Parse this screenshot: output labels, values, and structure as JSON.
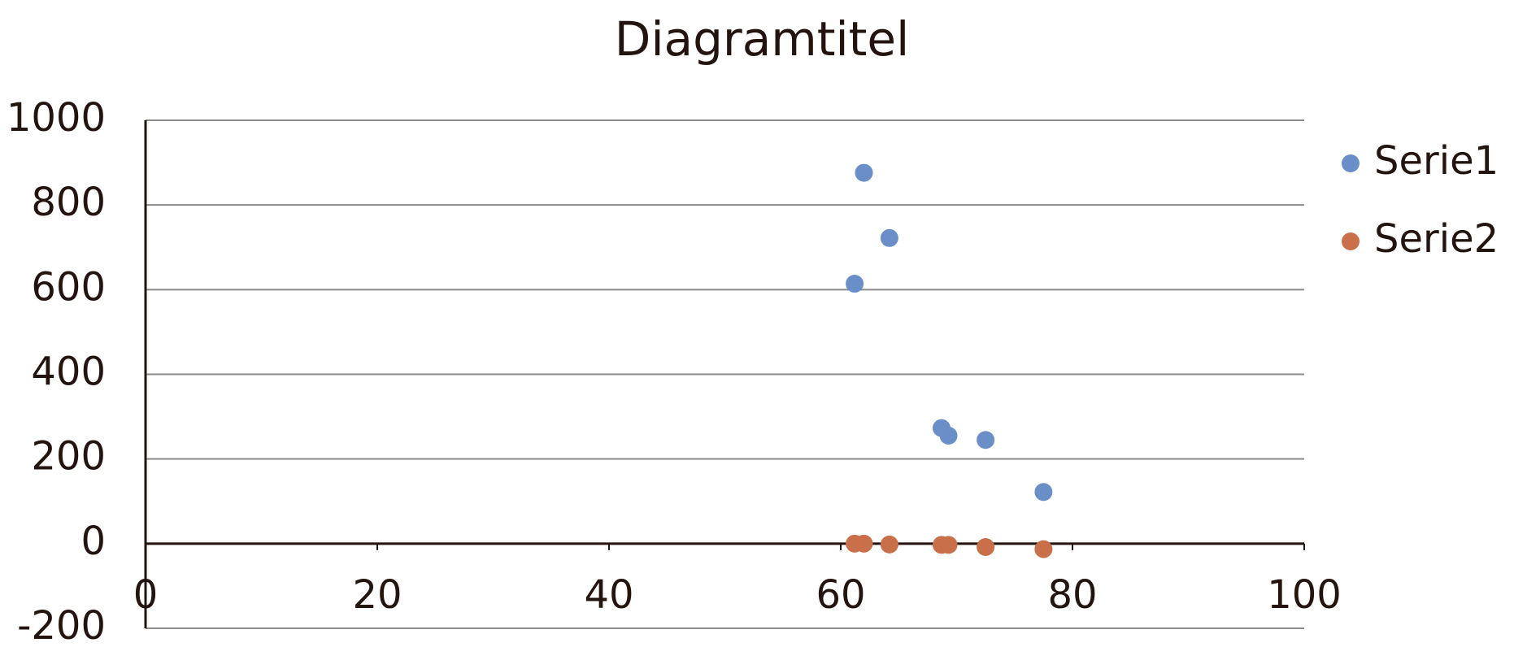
{
  "chart_data": {
    "type": "scatter",
    "title": "Diagramtitel",
    "series": [
      {
        "name": "Serie1",
        "color": "#6a8fc8",
        "x": [
          61.2,
          62.0,
          64.2,
          68.7,
          69.3,
          72.5,
          77.5
        ],
        "values": [
          614,
          876,
          722,
          273,
          255,
          245,
          122
        ]
      },
      {
        "name": "Serie2",
        "color": "#c9704a",
        "x": [
          61.2,
          62.0,
          64.2,
          68.7,
          69.3,
          72.5,
          77.5
        ],
        "values": [
          0,
          0,
          -2,
          -3,
          -3,
          -8,
          -13
        ]
      }
    ],
    "xlim": [
      0,
      100
    ],
    "xticks": [
      0,
      20,
      40,
      60,
      80,
      100
    ],
    "ylim": [
      -200,
      1000
    ],
    "yticks": [
      -200,
      0,
      200,
      400,
      600,
      800,
      1000
    ],
    "grid": true,
    "legend": "right"
  }
}
